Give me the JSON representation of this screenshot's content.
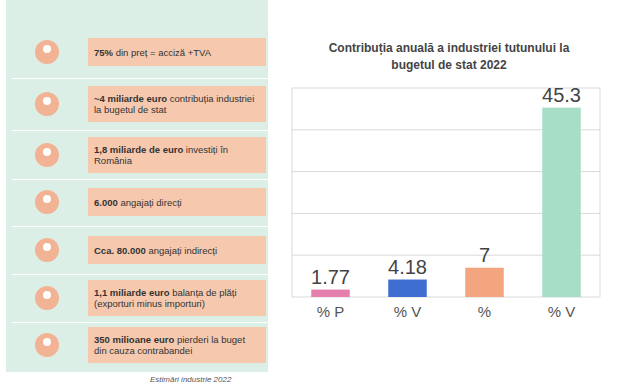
{
  "chart_data": {
    "type": "bar",
    "title": "Contribuția anuală a industriei tutunului la bugetul de stat 2022",
    "categories": [
      "% P",
      "% V",
      "%",
      "% V"
    ],
    "values": [
      1.77,
      4.18,
      7,
      45.3
    ],
    "colors": [
      "#e57fae",
      "#3f6ed3",
      "#f2a57f",
      "#a6dfc6"
    ],
    "ylim": [
      0,
      50
    ],
    "yticks": [
      0,
      10,
      20,
      30,
      40,
      50
    ],
    "grid": true,
    "data_labels": true,
    "tick_labels": false
  },
  "panel": {
    "items": [
      {
        "strong": "75%",
        "rest": "din preț = acciză +TVA"
      },
      {
        "strong": "~4 miliarde euro",
        "rest": "contribuția industriei la bugetul de stat"
      },
      {
        "strong": "1,8 miliarde de euro",
        "rest": "investiți în România"
      },
      {
        "strong": "6.000",
        "rest": "angajați direcți"
      },
      {
        "strong": "Cca. 80.000",
        "rest": "angajați indirecți"
      },
      {
        "strong": "1,1 miliarde euro",
        "rest": "balanța de plăți (exporturi minus importuri)"
      },
      {
        "strong": "350 milioane euro",
        "rest": "pierderi la buget din cauza contrabandei"
      }
    ],
    "note": "Estimări industrie 2022"
  }
}
